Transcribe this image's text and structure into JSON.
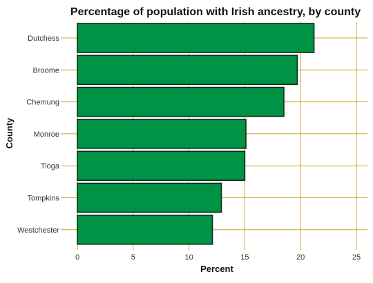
{
  "chart_data": {
    "type": "bar",
    "orientation": "horizontal",
    "title": "Percentage of population with Irish ancestry, by county",
    "xlabel": "Percent",
    "ylabel": "County",
    "categories": [
      "Dutchess",
      "Broome",
      "Chemung",
      "Monroe",
      "Tioga",
      "Tompkins",
      "Westchester"
    ],
    "values": [
      21.2,
      19.7,
      18.5,
      15.1,
      15.0,
      12.9,
      12.1
    ],
    "xlim": [
      0,
      25
    ],
    "xticks": [
      0,
      5,
      10,
      15,
      20,
      25
    ],
    "grid": true,
    "legend": "none",
    "colors": {
      "bar_fill": "#009245",
      "bar_stroke": "#0d2b14",
      "grid": "#d4a12e",
      "text": "#333333",
      "title": "#111111"
    }
  }
}
